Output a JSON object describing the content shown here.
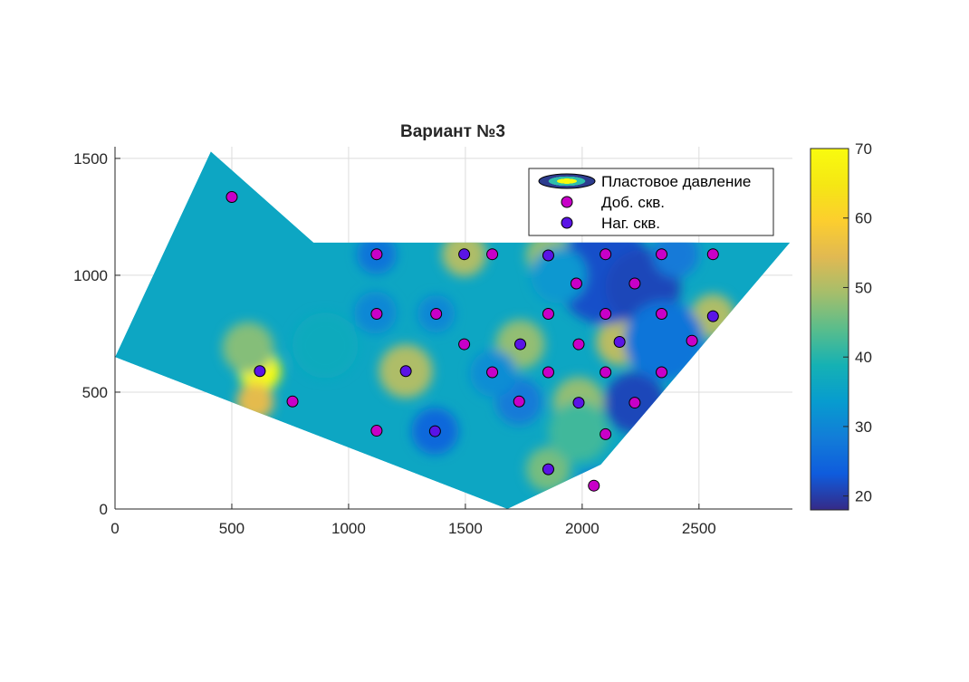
{
  "chart_data": {
    "type": "heatmap",
    "title": "Вариант №3",
    "xlabel": "",
    "ylabel": "",
    "xlim": [
      0,
      2900
    ],
    "ylim": [
      0,
      1550
    ],
    "x_ticks": [
      0,
      500,
      1000,
      1500,
      2000,
      2500
    ],
    "y_ticks": [
      0,
      500,
      1000,
      1500
    ],
    "grid": true,
    "colorbar": {
      "colormap": "parula",
      "range": [
        18,
        70
      ],
      "ticks": [
        20,
        30,
        40,
        50,
        60,
        70
      ]
    },
    "legend": {
      "position": "top-right",
      "entries": [
        "Пластовое давление",
        "Доб. скв.",
        "Наг. скв."
      ]
    },
    "domain_polygon": [
      [
        0,
        650
      ],
      [
        410,
        1530
      ],
      [
        850,
        1140
      ],
      [
        2890,
        1140
      ],
      [
        2080,
        190
      ],
      [
        1680,
        0
      ],
      [
        0,
        650
      ]
    ],
    "producers_color": "#c800c8",
    "injectors_color": "#5a14e6",
    "producers": [
      [
        500,
        1335
      ],
      [
        1120,
        1090
      ],
      [
        1615,
        1090
      ],
      [
        2100,
        1090
      ],
      [
        2340,
        1090
      ],
      [
        2560,
        1090
      ],
      [
        1975,
        965
      ],
      [
        2225,
        965
      ],
      [
        1120,
        835
      ],
      [
        1375,
        835
      ],
      [
        1855,
        835
      ],
      [
        2100,
        835
      ],
      [
        2340,
        835
      ],
      [
        1495,
        705
      ],
      [
        1985,
        705
      ],
      [
        2470,
        720
      ],
      [
        760,
        460
      ],
      [
        1615,
        585
      ],
      [
        1855,
        585
      ],
      [
        2100,
        585
      ],
      [
        2340,
        585
      ],
      [
        1730,
        460
      ],
      [
        2225,
        455
      ],
      [
        1120,
        335
      ],
      [
        2100,
        320
      ],
      [
        2050,
        100
      ]
    ],
    "injectors": [
      [
        620,
        590
      ],
      [
        1495,
        1090
      ],
      [
        1855,
        1085
      ],
      [
        1245,
        590
      ],
      [
        1735,
        705
      ],
      [
        2160,
        715
      ],
      [
        2560,
        825
      ],
      [
        1985,
        455
      ],
      [
        1370,
        333
      ],
      [
        1855,
        170
      ]
    ],
    "pressure_zones": [
      {
        "center": [
          620,
          590
        ],
        "radius": 90,
        "value": 70
      },
      {
        "center": [
          600,
          460
        ],
        "radius": 80,
        "value": 55
      },
      {
        "center": [
          570,
          690
        ],
        "radius": 110,
        "value": 47
      },
      {
        "center": [
          1245,
          590
        ],
        "radius": 115,
        "value": 50
      },
      {
        "center": [
          1495,
          1090
        ],
        "radius": 95,
        "value": 50
      },
      {
        "center": [
          1855,
          1085
        ],
        "radius": 95,
        "value": 48
      },
      {
        "center": [
          1735,
          705
        ],
        "radius": 105,
        "value": 48
      },
      {
        "center": [
          2160,
          715
        ],
        "radius": 100,
        "value": 51
      },
      {
        "center": [
          2560,
          825
        ],
        "radius": 95,
        "value": 50
      },
      {
        "center": [
          1985,
          455
        ],
        "radius": 110,
        "value": 48
      },
      {
        "center": [
          1855,
          170
        ],
        "radius": 95,
        "value": 46
      },
      {
        "center": [
          1985,
          330
        ],
        "radius": 130,
        "value": 42
      },
      {
        "center": [
          2100,
          1000
        ],
        "radius": 210,
        "value": 22
      },
      {
        "center": [
          2260,
          950
        ],
        "radius": 160,
        "value": 21
      },
      {
        "center": [
          2225,
          455
        ],
        "radius": 130,
        "value": 21
      },
      {
        "center": [
          2350,
          720
        ],
        "radius": 170,
        "value": 27
      },
      {
        "center": [
          1370,
          333
        ],
        "radius": 100,
        "value": 25
      },
      {
        "center": [
          1120,
          1090
        ],
        "radius": 85,
        "value": 27
      },
      {
        "center": [
          1730,
          460
        ],
        "radius": 100,
        "value": 28
      },
      {
        "center": [
          1620,
          580
        ],
        "radius": 100,
        "value": 31
      },
      {
        "center": [
          2050,
          100
        ],
        "radius": 70,
        "value": 27
      },
      {
        "center": [
          1115,
          840
        ],
        "radius": 90,
        "value": 30
      },
      {
        "center": [
          1375,
          835
        ],
        "radius": 80,
        "value": 30
      },
      {
        "center": [
          2400,
          1090
        ],
        "radius": 100,
        "value": 28
      },
      {
        "center": [
          900,
          700
        ],
        "radius": 140,
        "value": 37
      },
      {
        "center": [
          1900,
          1000
        ],
        "radius": 120,
        "value": 33
      }
    ],
    "background_value": 36
  }
}
